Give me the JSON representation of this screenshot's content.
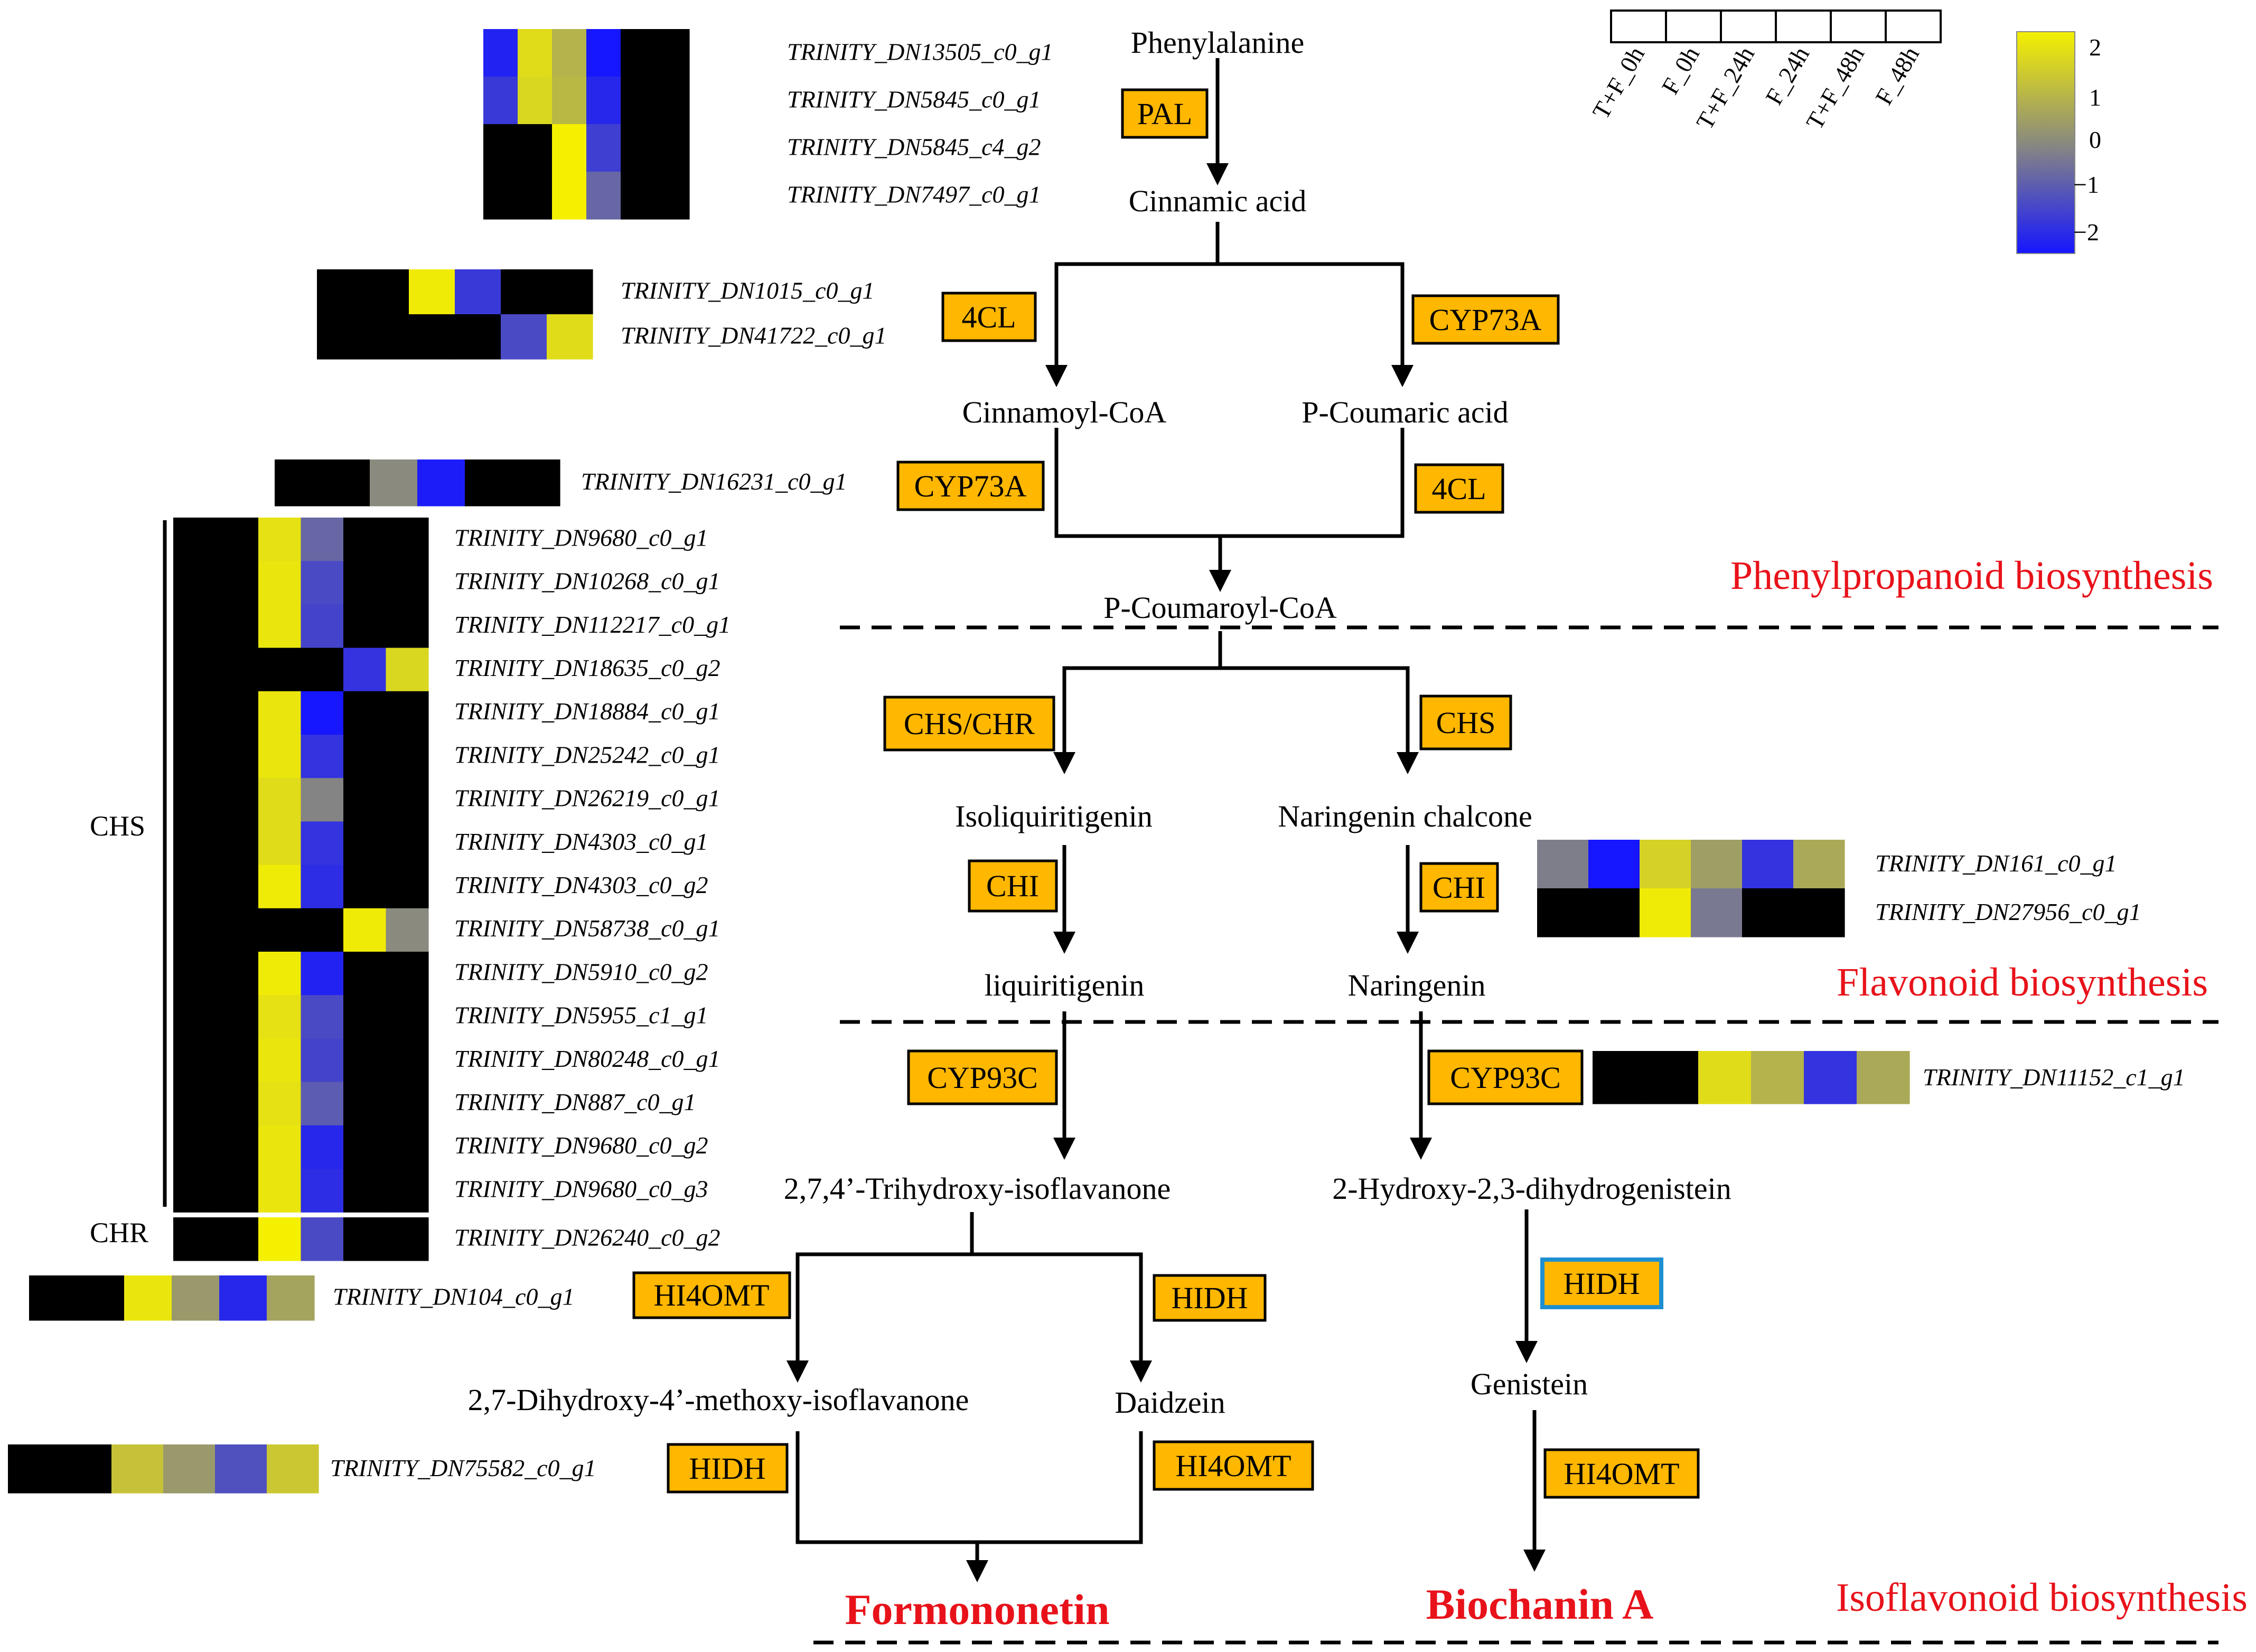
{
  "colors": {
    "enzyme_fill": "#ffb700",
    "section_color": "#e8121a",
    "product_color": "#e8121a",
    "hidh_highlight": "#1e8fd0",
    "scale_low": "#1616ff",
    "scale_mid": "#8a8a7e",
    "scale_high": "#f5f000",
    "missing": "#000000"
  },
  "legend": {
    "samples": [
      "T+F_0h",
      "F_0h",
      "T+F_24h",
      "F_24h",
      "T+F_48h",
      "F_48h"
    ],
    "scale_ticks": [
      "2",
      "1",
      "0",
      "−1",
      "−2"
    ]
  },
  "compounds": {
    "phenylalanine": "Phenylalanine",
    "cinnamic_acid": "Cinnamic acid",
    "cinnamoyl_coa": "Cinnamoyl-CoA",
    "p_coumaric_acid": "P-Coumaric acid",
    "p_coumaroyl_coa": "P-Coumaroyl-CoA",
    "isoliquiritigenin": "Isoliquiritigenin",
    "naringenin_chalcone": "Naringenin chalcone",
    "liquiritigenin": "liquiritigenin",
    "naringenin": "Naringenin",
    "trihydroxy": "2,7,4’-Trihydroxy-isoflavanone",
    "hydroxy_dihydrogenistein": "2-Hydroxy-2,3-dihydrogenistein",
    "dihydroxy_methoxy": "2,7-Dihydroxy-4’-methoxy-isoflavanone",
    "daidzein": "Daidzein",
    "genistein": "Genistein"
  },
  "products": {
    "formononetin": "Formononetin",
    "biochanin": "Biochanin A"
  },
  "sections": {
    "phenylpropanoid": "Phenylpropanoid biosynthesis",
    "flavonoid": "Flavonoid biosynthesis",
    "isoflavonoid": "Isoflavonoid biosynthesis"
  },
  "enzymes": {
    "pal": "PAL",
    "fourcl_left": "4CL",
    "cyp73a_right": "CYP73A",
    "cyp73a_left": "CYP73A",
    "fourcl_right": "4CL",
    "chs_chr": "CHS/CHR",
    "chs": "CHS",
    "chi_left": "CHI",
    "chi_right": "CHI",
    "cyp93c_left": "CYP93C",
    "cyp93c_right": "CYP93C",
    "hi4omt_a": "HI4OMT",
    "hidh_a": "HIDH",
    "hidh_b": "HIDH",
    "hidh_c": "HIDH",
    "hi4omt_b": "HI4OMT",
    "hi4omt_c": "HI4OMT"
  },
  "side_labels": {
    "chs": "CHS",
    "chr": "CHR"
  },
  "heatmaps": {
    "pal": [
      {
        "gene": "TRINITY_DN13505_c0_g1",
        "values": [
          -1.8,
          1.6,
          0.8,
          -2,
          null,
          null
        ]
      },
      {
        "gene": "TRINITY_DN5845_c0_g1",
        "values": [
          -1.4,
          1.5,
          0.9,
          -1.7,
          null,
          null
        ]
      },
      {
        "gene": "TRINITY_DN5845_c4_g2",
        "values": [
          null,
          null,
          2,
          -1.3,
          null,
          null
        ]
      },
      {
        "gene": "TRINITY_DN7497_c0_g1",
        "values": [
          null,
          null,
          2,
          -0.6,
          null,
          null
        ]
      }
    ],
    "fourcl": [
      {
        "gene": "TRINITY_DN1015_c0_g1",
        "values": [
          null,
          null,
          1.9,
          -1.4,
          null,
          null
        ]
      },
      {
        "gene": "TRINITY_DN41722_c0_g1",
        "values": [
          null,
          null,
          null,
          null,
          -1.1,
          1.6
        ]
      }
    ],
    "cyp73a": [
      {
        "gene": "TRINITY_DN16231_c0_g1",
        "values": [
          null,
          null,
          0,
          -1.9,
          null,
          null
        ]
      }
    ],
    "chs": [
      {
        "gene": "TRINITY_DN9680_c0_g1",
        "values": [
          null,
          null,
          1.7,
          -0.6,
          null,
          null
        ]
      },
      {
        "gene": "TRINITY_DN10268_c0_g1",
        "values": [
          null,
          null,
          1.8,
          -1.1,
          null,
          null
        ]
      },
      {
        "gene": "TRINITY_DN112217_c0_g1",
        "values": [
          null,
          null,
          1.8,
          -1.2,
          null,
          null
        ]
      },
      {
        "gene": "TRINITY_DN18635_c0_g2",
        "values": [
          null,
          null,
          null,
          null,
          -1.5,
          1.5
        ]
      },
      {
        "gene": "TRINITY_DN18884_c0_g1",
        "values": [
          null,
          null,
          1.8,
          -2,
          null,
          null
        ]
      },
      {
        "gene": "TRINITY_DN25242_c0_g1",
        "values": [
          null,
          null,
          1.8,
          -1.5,
          null,
          null
        ]
      },
      {
        "gene": "TRINITY_DN26219_c0_g1",
        "values": [
          null,
          null,
          1.6,
          -0.1,
          null,
          null
        ]
      },
      {
        "gene": "TRINITY_DN4303_c0_g1",
        "values": [
          null,
          null,
          1.6,
          -1.5,
          null,
          null
        ]
      },
      {
        "gene": "TRINITY_DN4303_c0_g2",
        "values": [
          null,
          null,
          1.9,
          -1.6,
          null,
          null
        ]
      },
      {
        "gene": "TRINITY_DN58738_c0_g1",
        "values": [
          null,
          null,
          null,
          null,
          1.9,
          0
        ]
      },
      {
        "gene": "TRINITY_DN5910_c0_g2",
        "values": [
          null,
          null,
          1.9,
          -1.8,
          null,
          null
        ]
      },
      {
        "gene": "TRINITY_DN5955_c1_g1",
        "values": [
          null,
          null,
          1.7,
          -1.1,
          null,
          null
        ]
      },
      {
        "gene": "TRINITY_DN80248_c0_g1",
        "values": [
          null,
          null,
          1.8,
          -1.2,
          null,
          null
        ]
      },
      {
        "gene": "TRINITY_DN887_c0_g1",
        "values": [
          null,
          null,
          1.7,
          -0.8,
          null,
          null
        ]
      },
      {
        "gene": "TRINITY_DN9680_c0_g2",
        "values": [
          null,
          null,
          1.8,
          -1.7,
          null,
          null
        ]
      },
      {
        "gene": "TRINITY_DN9680_c0_g3",
        "values": [
          null,
          null,
          1.8,
          -1.6,
          null,
          null
        ]
      }
    ],
    "chr": [
      {
        "gene": "TRINITY_DN26240_c0_g2",
        "values": [
          null,
          null,
          2,
          -1.1,
          null,
          null
        ]
      }
    ],
    "chi": [
      {
        "gene": "TRINITY_DN161_c0_g1",
        "values": [
          -0.2,
          -2,
          1.4,
          0.4,
          -1.5,
          0.6
        ]
      },
      {
        "gene": "TRINITY_DN27956_c0_g1",
        "values": [
          null,
          null,
          1.9,
          -0.3,
          null,
          null
        ]
      }
    ],
    "cyp93c": [
      {
        "gene": "TRINITY_DN11152_c1_g1",
        "values": [
          null,
          null,
          1.6,
          0.8,
          -1.5,
          0.6
        ]
      }
    ],
    "hi4omt": [
      {
        "gene": "TRINITY_DN104_c0_g1",
        "values": [
          null,
          null,
          1.8,
          0.3,
          -1.7,
          0.5
        ]
      }
    ],
    "hidh": [
      {
        "gene": "TRINITY_DN75582_c0_g1",
        "values": [
          null,
          null,
          1.1,
          0.3,
          -1,
          1.2
        ]
      }
    ]
  }
}
